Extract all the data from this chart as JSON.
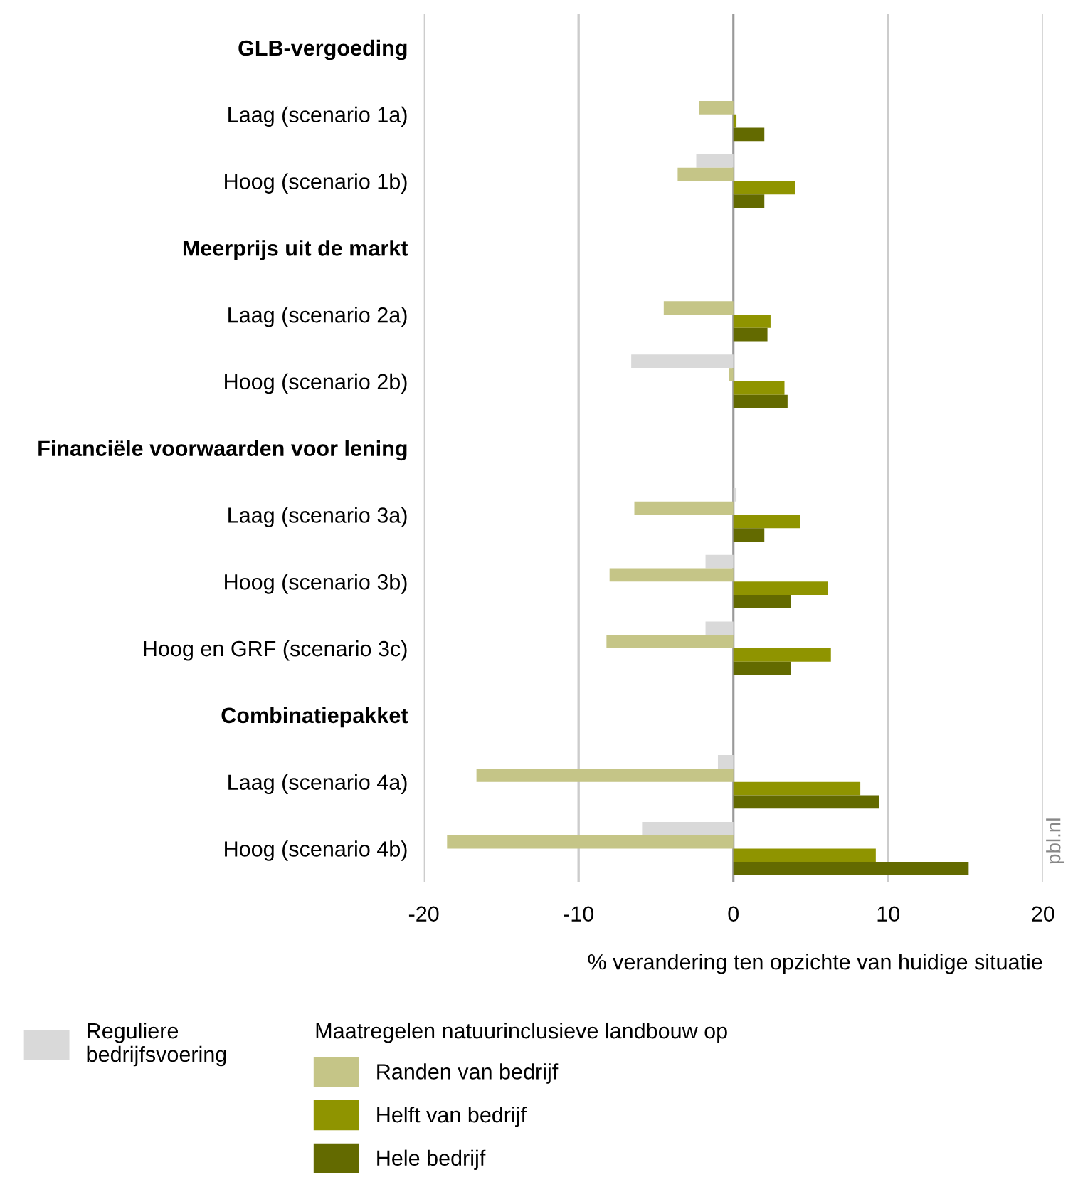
{
  "chart_data": {
    "type": "bar",
    "orientation": "horizontal",
    "categories": [
      "GLB-vergoeding",
      "Laag (scenario 1a)",
      "Hoog (scenario 1b)",
      "Meerprijs uit de markt",
      "Laag (scenario 2a)",
      "Hoog (scenario 2b)",
      "Financiële voorwaarden voor lening",
      "Laag (scenario 3a)",
      "Hoog (scenario 3b)",
      "Hoog en GRF (scenario 3c)",
      "Combinatiepakket",
      "Laag (scenario 4a)",
      "Hoog (scenario 4b)"
    ],
    "series": [
      {
        "name": "Reguliere\nbedrijfsvoering",
        "color": "#d9d9d9",
        "values": [
          null,
          0,
          -2.4,
          null,
          0,
          -6.6,
          null,
          0.2,
          -1.8,
          -1.8,
          null,
          -1.0,
          -5.9
        ]
      },
      {
        "name": "Randen van bedrijf",
        "color": "#c5c587",
        "values": [
          null,
          -2.2,
          -3.6,
          null,
          -4.5,
          -0.3,
          null,
          -6.4,
          -8.0,
          -8.2,
          null,
          -16.6,
          -18.5
        ]
      },
      {
        "name": "Helft van bedrijf",
        "color": "#8f9400",
        "values": [
          null,
          0.2,
          4.0,
          null,
          2.4,
          3.3,
          null,
          4.3,
          6.1,
          6.3,
          null,
          8.2,
          9.2
        ]
      },
      {
        "name": "Hele bedrijf",
        "color": "#636a00",
        "values": [
          null,
          2.0,
          2.0,
          null,
          2.2,
          3.5,
          null,
          2.0,
          3.7,
          3.7,
          null,
          9.4,
          15.2
        ]
      }
    ],
    "xlim": [
      -20,
      20
    ],
    "xticks": [
      -20,
      -10,
      0,
      10,
      20
    ],
    "xlabel": "% verandering ten opzichte van huidige situatie",
    "legend_title": "Maatregelen natuurinclusieve landbouw op",
    "legend": "bottom",
    "grid": "x",
    "annotations": [
      "pbl.nl"
    ]
  }
}
